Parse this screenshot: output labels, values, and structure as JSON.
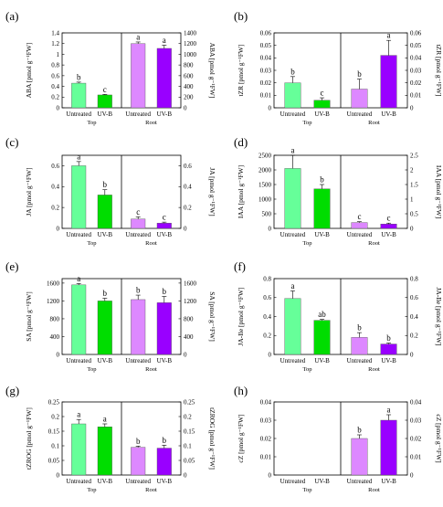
{
  "colors": {
    "untreated_top": "#66ff99",
    "uvb_top": "#00dd00",
    "untreated_root": "#dd88ff",
    "uvb_root": "#9900ff",
    "axis": "#000000"
  },
  "chart_data": [
    {
      "panel": "(a)",
      "type": "bar",
      "categories": [
        "Untreated",
        "UV-B"
      ],
      "groups": [
        "Top",
        "Root"
      ],
      "ylabel_left": "ABA [pmol g⁻¹FW]",
      "ylabel_right": "ABA [pmol g⁻¹FW]",
      "ylim_left": [
        0,
        1.4
      ],
      "ylim_right": [
        0,
        1400
      ],
      "yticks_left": [
        "0",
        "0.2",
        "0.4",
        "0.6",
        "0.8",
        "1",
        "1.2",
        "1.4"
      ],
      "yticks_right": [
        "0",
        "200",
        "400",
        "600",
        "800",
        "1000",
        "1200",
        "1400"
      ],
      "series": [
        {
          "values": [
            0.46,
            0.24
          ],
          "errors": [
            0.02,
            0.01
          ],
          "letters": [
            "b",
            "c"
          ]
        },
        {
          "values": [
            1200,
            1110
          ],
          "errors": [
            30,
            60
          ],
          "letters": [
            "a",
            "a"
          ]
        }
      ]
    },
    {
      "panel": "(b)",
      "type": "bar",
      "categories": [
        "Untreated",
        "UV-B"
      ],
      "groups": [
        "Top",
        "Root"
      ],
      "ylabel_left": "tZR [pmol g⁻¹FW]",
      "ylabel_right": "tZR [pmol g⁻¹FW]",
      "ylim_left": [
        0,
        0.06
      ],
      "ylim_right": [
        0,
        0.06
      ],
      "yticks_left": [
        "0",
        "0.01",
        "0.02",
        "0.03",
        "0.04",
        "0.05",
        "0.06"
      ],
      "yticks_right": [
        "0",
        "0.01",
        "0.02",
        "0.03",
        "0.04",
        "0.05",
        "0.06"
      ],
      "series": [
        {
          "values": [
            0.02,
            0.006
          ],
          "errors": [
            0.005,
            0.002
          ],
          "letters": [
            "b",
            "c"
          ]
        },
        {
          "values": [
            0.015,
            0.042
          ],
          "errors": [
            0.008,
            0.012
          ],
          "letters": [
            "b",
            "a"
          ]
        }
      ]
    },
    {
      "panel": "(c)",
      "type": "bar",
      "categories": [
        "Untreated",
        "UV-B"
      ],
      "groups": [
        "Top",
        "Root"
      ],
      "ylabel_left": "JA [pmol g⁻¹FW]",
      "ylabel_right": "JA [pmol g⁻¹FW]",
      "ylim_left": [
        0,
        0.7
      ],
      "ylim_right": [
        0,
        0.7
      ],
      "yticks_left": [
        "0",
        "0.2",
        "0.4",
        "0.6"
      ],
      "yticks_right": [
        "0",
        "0.2",
        "0.4",
        "0.6"
      ],
      "series": [
        {
          "values": [
            0.6,
            0.32
          ],
          "errors": [
            0.04,
            0.05
          ],
          "letters": [
            "a",
            "b"
          ]
        },
        {
          "values": [
            0.09,
            0.05
          ],
          "errors": [
            0.02,
            0.01
          ],
          "letters": [
            "c",
            "c"
          ]
        }
      ]
    },
    {
      "panel": "(d)",
      "type": "bar",
      "categories": [
        "Untreated",
        "UV-B"
      ],
      "groups": [
        "Top",
        "Root"
      ],
      "ylabel_left": "IAA [pmol g⁻¹FW]",
      "ylabel_right": "IAA [pmol g⁻¹FW]",
      "ylim_left": [
        0,
        2500
      ],
      "ylim_right": [
        0,
        2.5
      ],
      "yticks_left": [
        "0",
        "500",
        "1000",
        "1500",
        "2000",
        "2500"
      ],
      "yticks_right": [
        "0",
        "0.5",
        "1",
        "1.5",
        "2",
        "2.5"
      ],
      "series": [
        {
          "values": [
            2050,
            1350
          ],
          "errors": [
            450,
            150
          ],
          "letters": [
            "a",
            "b"
          ]
        },
        {
          "values": [
            0.2,
            0.15
          ],
          "errors": [
            0.03,
            0.03
          ],
          "letters": [
            "c",
            "c"
          ]
        }
      ]
    },
    {
      "panel": "(e)",
      "type": "bar",
      "categories": [
        "Untreated",
        "UV-B"
      ],
      "groups": [
        "Top",
        "Root"
      ],
      "ylabel_left": "SA [pmol g⁻¹FW]",
      "ylabel_right": "SA [pmol g⁻¹FW]",
      "ylim_left": [
        0,
        1700
      ],
      "ylim_right": [
        0,
        1700
      ],
      "yticks_left": [
        "0",
        "400",
        "800",
        "1200",
        "1600"
      ],
      "yticks_right": [
        "0",
        "400",
        "800",
        "1200",
        "1600"
      ],
      "series": [
        {
          "values": [
            1560,
            1200
          ],
          "errors": [
            30,
            60
          ],
          "letters": [
            "a",
            "b"
          ]
        },
        {
          "values": [
            1230,
            1160
          ],
          "errors": [
            100,
            140
          ],
          "letters": [
            "b",
            "b"
          ]
        }
      ]
    },
    {
      "panel": "(f)",
      "type": "bar",
      "categories": [
        "Untreated",
        "UV-B"
      ],
      "groups": [
        "Top",
        "Root"
      ],
      "ylabel_left": "JA-Ile [pmol g⁻¹FW]",
      "ylabel_right": "JA-Ile [pmol g⁻¹FW]",
      "ylim_left": [
        0,
        0.8
      ],
      "ylim_right": [
        0,
        0.8
      ],
      "yticks_left": [
        "0",
        "0.2",
        "0.4",
        "0.6",
        "0.8"
      ],
      "yticks_right": [
        "0",
        "0.2",
        "0.4",
        "0.6",
        "0.8"
      ],
      "series": [
        {
          "values": [
            0.59,
            0.36
          ],
          "errors": [
            0.08,
            0.01
          ],
          "letters": [
            "a",
            "ab"
          ]
        },
        {
          "values": [
            0.18,
            0.11
          ],
          "errors": [
            0.05,
            0.01
          ],
          "letters": [
            "b",
            "b"
          ]
        }
      ]
    },
    {
      "panel": "(g)",
      "type": "bar",
      "categories": [
        "Untreated",
        "UV-B"
      ],
      "groups": [
        "Top",
        "Root"
      ],
      "ylabel_left": "tZROG [pmol g⁻¹FW]",
      "ylabel_right": "tZROG [pmol g⁻¹FW]",
      "ylim_left": [
        0,
        0.25
      ],
      "ylim_right": [
        0,
        0.25
      ],
      "yticks_left": [
        "0",
        "0.05",
        "0.1",
        "0.15",
        "0.2",
        "0.25"
      ],
      "yticks_right": [
        "0",
        "0.05",
        "0.1",
        "0.15",
        "0.2",
        "0.25"
      ],
      "series": [
        {
          "values": [
            0.175,
            0.165
          ],
          "errors": [
            0.015,
            0.01
          ],
          "letters": [
            "a",
            "a"
          ]
        },
        {
          "values": [
            0.095,
            0.092
          ],
          "errors": [
            0.004,
            0.01
          ],
          "letters": [
            "b",
            "b"
          ]
        }
      ]
    },
    {
      "panel": "(h)",
      "type": "bar",
      "categories": [
        "Untreated",
        "UV-B"
      ],
      "groups": [
        "Top",
        "Root"
      ],
      "ylabel_left": "cZ [pmol g⁻¹FW]",
      "ylabel_right": "cZ [pmol g⁻¹FW]",
      "ylim_left": [
        0,
        0.04
      ],
      "ylim_right": [
        0,
        0.04
      ],
      "yticks_left": [
        "0",
        "0.01",
        "0.02",
        "0.03",
        "0.04"
      ],
      "yticks_right": [
        "0",
        "0.01",
        "0.02",
        "0.03",
        "0.04"
      ],
      "series": [
        {
          "values": [
            0,
            0
          ],
          "errors": [
            0,
            0
          ],
          "letters": [
            "",
            ""
          ]
        },
        {
          "values": [
            0.02,
            0.03
          ],
          "errors": [
            0.002,
            0.003
          ],
          "letters": [
            "b",
            "a"
          ]
        }
      ]
    }
  ]
}
